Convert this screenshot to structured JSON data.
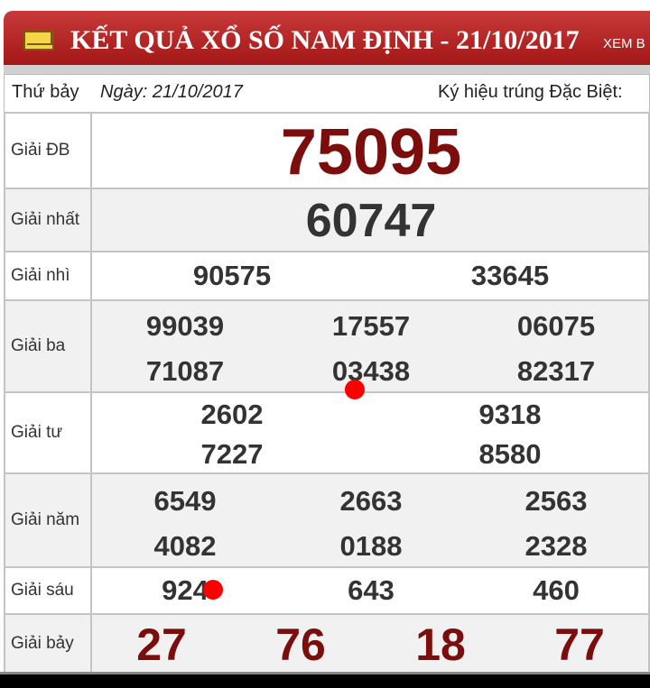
{
  "header": {
    "title": "KẾT QUẢ XỔ SỐ NAM ĐỊNH - 21/10/2017",
    "more": "XEM B",
    "icon": "envelope-icon"
  },
  "info": {
    "weekday": "Thứ bảy",
    "date": "Ngày: 21/10/2017",
    "special_code_label": "Ký hiệu trúng Đặc Biệt:"
  },
  "prizes": [
    {
      "label": "Giải ĐB",
      "numbers": [
        "75095"
      ]
    },
    {
      "label": "Giải nhất",
      "numbers": [
        "60747"
      ]
    },
    {
      "label": "Giải nhì",
      "numbers": [
        "90575",
        "33645"
      ]
    },
    {
      "label": "Giải ba",
      "numbers": [
        "99039",
        "17557",
        "06075",
        "71087",
        "03438",
        "82317"
      ]
    },
    {
      "label": "Giải tư",
      "numbers": [
        "2602",
        "9318",
        "7227",
        "8580"
      ]
    },
    {
      "label": "Giải năm",
      "numbers": [
        "6549",
        "2663",
        "2563",
        "4082",
        "0188",
        "2328"
      ]
    },
    {
      "label": "Giải sáu",
      "numbers": [
        "924",
        "643",
        "460"
      ]
    },
    {
      "label": "Giải bảy",
      "numbers": [
        "27",
        "76",
        "18",
        "77"
      ]
    }
  ],
  "colors": {
    "header_red": "#b22222",
    "special_red": "#7b0d0d",
    "marker": "#ff0000"
  }
}
